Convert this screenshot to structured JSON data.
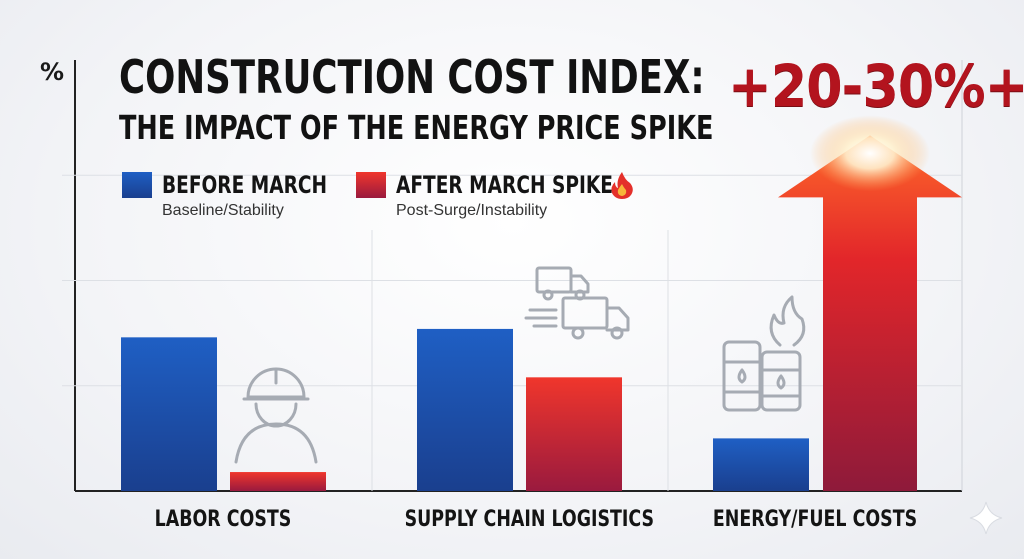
{
  "chart_data": {
    "type": "bar",
    "title": "CONSTRUCTION COST INDEX:",
    "subtitle": "THE IMPACT OF THE ENERGY PRICE SPIKE",
    "ylabel": "%",
    "categories": [
      "LABOR COSTS",
      "SUPPLY CHAIN LOGISTICS",
      "ENERGY/FUEL COSTS"
    ],
    "series": [
      {
        "name": "BEFORE MARCH",
        "description": "Baseline/Stability",
        "color": "#1f55b0",
        "values": [
          36.5,
          38.5,
          12.5
        ]
      },
      {
        "name": "AFTER MARCH SPIKE",
        "description": "Post-Surge/Instability",
        "color": "#e0282c",
        "values": [
          4.5,
          27,
          84
        ]
      }
    ],
    "ylim": [
      0,
      100
    ],
    "grid": true,
    "legend_position": "top-left",
    "annotation": "+20-30%+",
    "icons": [
      "hardhat-worker-icon",
      "delivery-truck-icon",
      "oil-barrels-flame-icon",
      "fire-icon",
      "sparkle-icon"
    ]
  }
}
